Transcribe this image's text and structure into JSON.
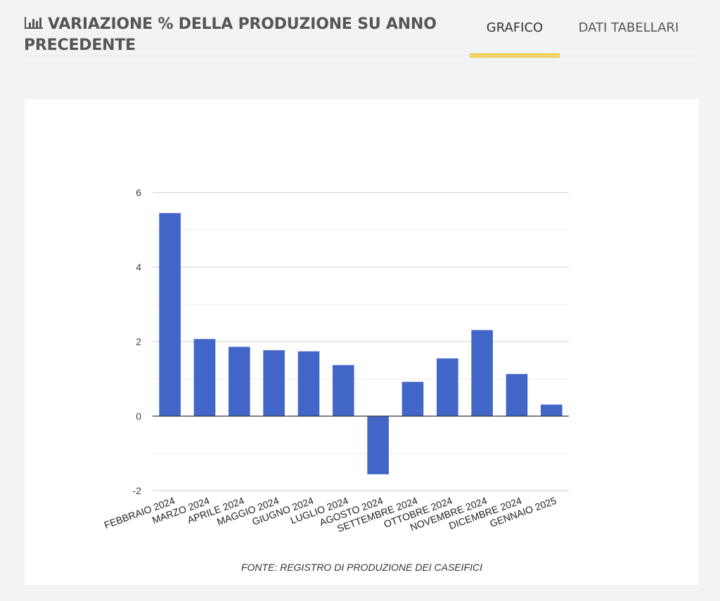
{
  "header": {
    "title": "VARIAZIONE % DELLA PRODUZIONE SU ANNO PRECEDENTE",
    "icon": "bar-chart-icon",
    "tabs": [
      {
        "label": "GRAFICO",
        "active": true
      },
      {
        "label": "DATI TABELLARI",
        "active": false
      }
    ],
    "accent_color": "#f2cb36"
  },
  "chart_data": {
    "type": "bar",
    "categories": [
      "FEBBRAIO 2024",
      "MARZO 2024",
      "APRILE 2024",
      "MAGGIO 2024",
      "GIUGNO 2024",
      "LUGLIO 2024",
      "AGOSTO 2024",
      "SETTEMBRE 2024",
      "OTTOBRE 2024",
      "NOVEMBRE 2024",
      "DICEMBRE 2024",
      "GENNAIO 2025"
    ],
    "values": [
      5.45,
      2.07,
      1.86,
      1.77,
      1.74,
      1.37,
      -1.56,
      0.92,
      1.55,
      2.31,
      1.13,
      0.31
    ],
    "yticks": [
      -2,
      0,
      2,
      4,
      6
    ],
    "ylim": [
      -2,
      6
    ],
    "grid": true,
    "bar_color": "#4266c8",
    "source": "FONTE: REGISTRO DI PRODUZIONE DEI CASEIFICI"
  }
}
